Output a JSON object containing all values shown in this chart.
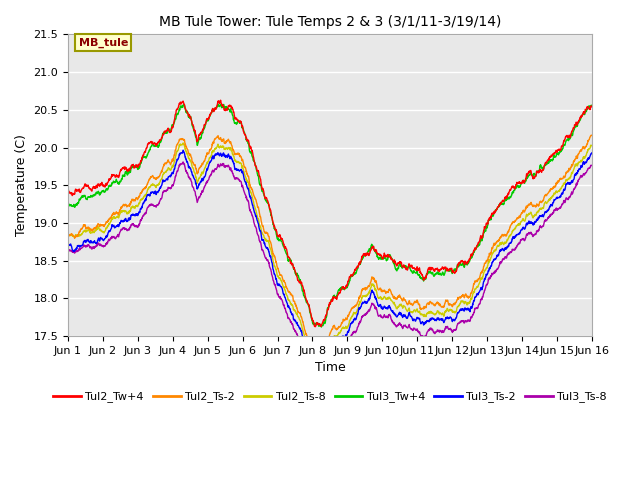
{
  "title": "MB Tule Tower: Tule Temps 2 & 3 (3/1/11-3/19/14)",
  "xlabel": "Time",
  "ylabel": "Temperature (C)",
  "ylim": [
    17.5,
    21.5
  ],
  "xlim": [
    0,
    15
  ],
  "xtick_labels": [
    "Jun 1",
    "Jun 2",
    "Jun 3",
    "Jun 4",
    "Jun 5",
    "Jun 6",
    "Jun 7",
    "Jun 8",
    "Jun 9",
    "Jun 10",
    "Jun 11",
    "Jun 12",
    "Jun 13",
    "Jun 14",
    "Jun 15",
    "Jun 16"
  ],
  "ytick_values": [
    17.5,
    18.0,
    18.5,
    19.0,
    19.5,
    20.0,
    20.5,
    21.0,
    21.5
  ],
  "annotation_text": "MB_tule",
  "series": [
    {
      "label": "Tul2_Tw+4",
      "color": "#ff0000"
    },
    {
      "label": "Tul2_Ts-2",
      "color": "#ff8800"
    },
    {
      "label": "Tul2_Ts-8",
      "color": "#cccc00"
    },
    {
      "label": "Tul3_Tw+4",
      "color": "#00cc00"
    },
    {
      "label": "Tul3_Ts-2",
      "color": "#0000ff"
    },
    {
      "label": "Tul3_Ts-8",
      "color": "#aa00aa"
    }
  ],
  "fig_bg_color": "#ffffff",
  "plot_bg_color": "#e8e8e8",
  "grid_color": "#ffffff",
  "title_fontsize": 10,
  "label_fontsize": 9,
  "tick_fontsize": 8
}
